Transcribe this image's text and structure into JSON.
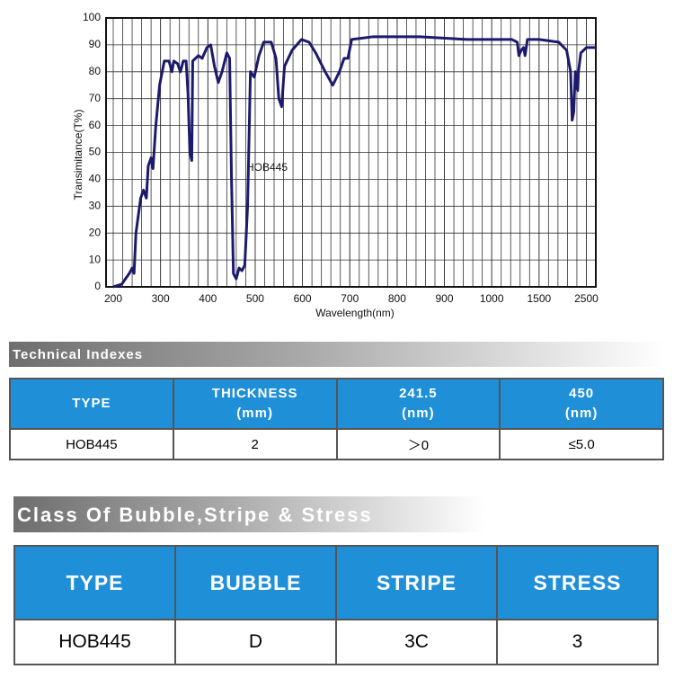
{
  "chart_data": {
    "type": "line",
    "ylabel": "Transimitance(T%)",
    "xlabel": "Wavelength(nm)",
    "annotation": "HOB445",
    "color": "#1c1a6b",
    "grid": true,
    "xlim": [
      200,
      2700
    ],
    "ylim": [
      0,
      100
    ],
    "xticks": [
      200,
      300,
      400,
      500,
      600,
      700,
      800,
      900,
      1000,
      1500,
      2500
    ],
    "yticks": [
      0,
      10,
      20,
      30,
      40,
      50,
      60,
      70,
      80,
      90,
      100
    ],
    "x": [
      200,
      218,
      234,
      240,
      244,
      248,
      258,
      264,
      270,
      274,
      280,
      284,
      290,
      298,
      308,
      318,
      324,
      328,
      336,
      342,
      348,
      354,
      358,
      362,
      366,
      368,
      380,
      388,
      398,
      406,
      414,
      422,
      430,
      440,
      446,
      450,
      454,
      460,
      466,
      472,
      478,
      484,
      490,
      498,
      508,
      518,
      534,
      544,
      550,
      556,
      562,
      578,
      598,
      614,
      628,
      648,
      664,
      678,
      688,
      696,
      704,
      748,
      848,
      948,
      1213,
      1270,
      1287,
      1311,
      1336,
      1352,
      1377,
      1500,
      1917,
      2083,
      2167,
      2200,
      2233,
      2267,
      2283,
      2317,
      2333,
      2383,
      2500,
      2700
    ],
    "values": [
      0,
      1,
      5,
      7,
      5,
      20,
      33,
      36,
      33,
      45,
      48,
      44,
      60,
      75,
      84,
      84,
      80,
      84,
      83,
      80,
      84,
      84,
      72,
      50,
      47,
      84,
      86,
      85,
      89,
      90,
      82,
      76,
      80,
      87,
      85,
      40,
      5,
      3,
      7,
      6,
      8,
      30,
      80,
      78,
      86,
      91,
      91,
      85,
      70,
      67,
      82,
      88,
      92,
      91,
      87,
      80,
      75,
      80,
      85,
      85,
      92,
      93,
      93,
      92,
      92,
      91,
      86,
      88,
      89,
      86,
      92,
      92,
      91,
      88,
      80,
      62,
      65,
      80,
      76,
      73,
      80,
      87,
      89,
      89
    ]
  },
  "sections": [
    {
      "title": "Technical Indexes",
      "headers": [
        {
          "name": "TYPE"
        },
        {
          "name": "THICKNESS",
          "unit": "(mm)"
        },
        {
          "name": "241.5",
          "unit": "(nm)"
        },
        {
          "name": "450",
          "unit": "(nm)"
        }
      ],
      "rows": [
        [
          "HOB445",
          "2",
          "＞0",
          "≤5.0"
        ]
      ]
    },
    {
      "title": "Class Of Bubble,Stripe & Stress",
      "headers": [
        {
          "name": "TYPE"
        },
        {
          "name": "BUBBLE"
        },
        {
          "name": "STRIPE"
        },
        {
          "name": "STRESS"
        }
      ],
      "rows": [
        [
          "HOB445",
          "D",
          "3C",
          "3"
        ]
      ]
    }
  ]
}
